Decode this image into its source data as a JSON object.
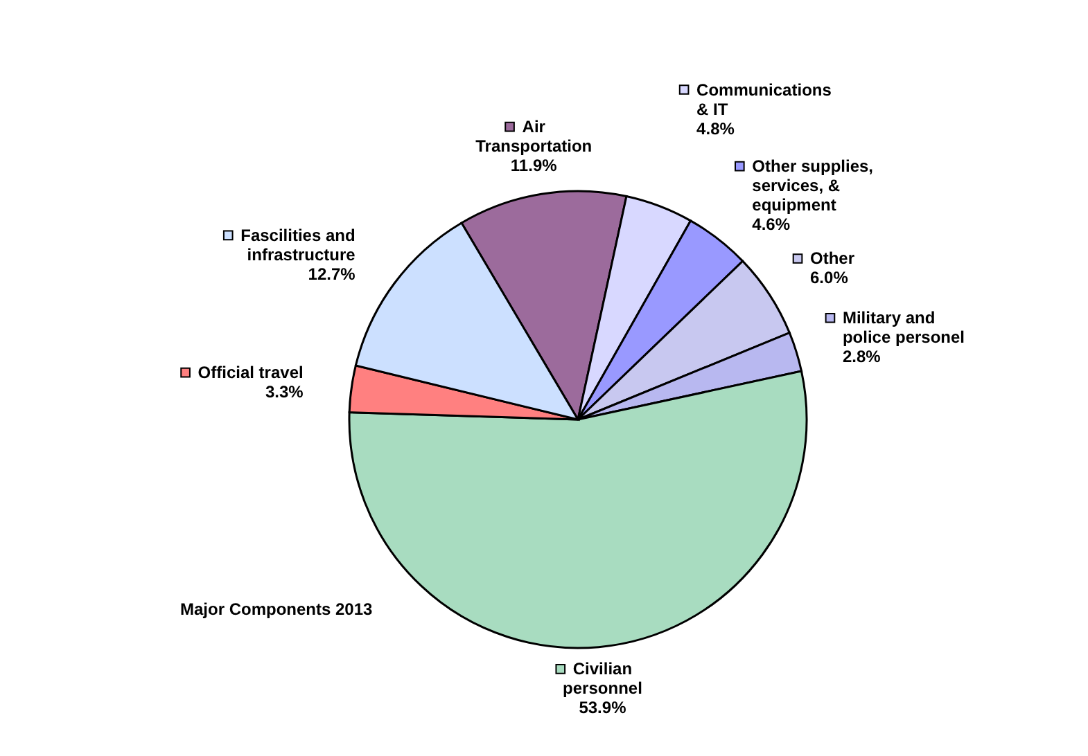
{
  "chart_data": {
    "type": "pie",
    "title": "Major Components  2013",
    "categories": [
      "Air Transportation",
      "Communications & IT",
      "Other supplies, services, & equipment",
      "Other",
      "Military and police personel",
      "Civilian personnel",
      "Official travel",
      "Fascilities and infrastructure"
    ],
    "values": [
      11.9,
      4.8,
      4.6,
      6.0,
      2.8,
      53.9,
      3.3,
      12.7
    ],
    "value_labels": [
      "11.9%",
      "4.8%",
      "4.6%",
      "6.0%",
      "2.8%",
      "53.9%",
      "3.3%",
      "12.7%"
    ],
    "legend": "right",
    "colors": [
      "#9c6b9c",
      "#d8d8ff",
      "#9999ff",
      "#c8c8f0",
      "#b8b8f0",
      "#a8dcc0",
      "#ff8080",
      "#cce0ff"
    ]
  }
}
